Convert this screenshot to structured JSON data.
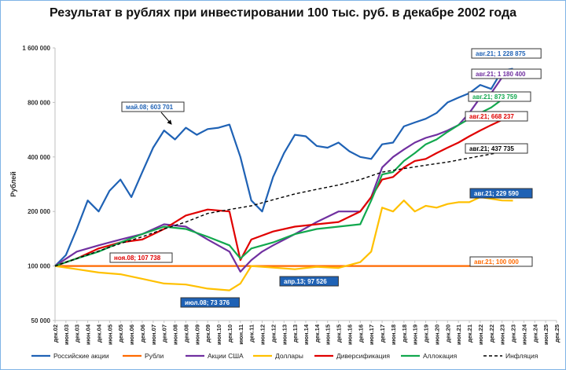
{
  "chart_data": {
    "type": "line",
    "title": "Результат в рублях при инвестировании 100 тыс. руб. в декабре 2002 года",
    "ylabel": "Рублей",
    "xlabel": "",
    "yscale": "log",
    "ylim": [
      50000,
      1600000
    ],
    "yticks": [
      50000,
      100000,
      200000,
      400000,
      800000,
      1600000
    ],
    "ytick_labels": [
      "50 000",
      "100 000",
      "200 000",
      "400 000",
      "800 000",
      "1 600 000"
    ],
    "x_tick_labels": [
      "дек.02",
      "июн.03",
      "дек.03",
      "июн.04",
      "дек.04",
      "июн.05",
      "дек.05",
      "июн.06",
      "дек.06",
      "июн.07",
      "дек.07",
      "июн.08",
      "дек.08",
      "июн.09",
      "дек.09",
      "июн.10",
      "дек.10",
      "июн.11",
      "дек.11",
      "июн.12",
      "дек.12",
      "июн.13",
      "дек.13",
      "июн.14",
      "дек.14",
      "июн.15",
      "дек.15",
      "июн.16",
      "дек.16",
      "июн.17",
      "дек.17",
      "июн.18",
      "дек.18",
      "июн.19",
      "дек.19",
      "июн.20",
      "дек.20",
      "июн.21",
      "дек.21",
      "июн.22",
      "дек.22",
      "июн.23",
      "дек.23",
      "июн.24",
      "дек.24",
      "июн.25",
      "дек.25"
    ],
    "grid": false,
    "legend_position": "bottom",
    "series": [
      {
        "name": "Российские акции",
        "color": "#1f62b5",
        "dash": "solid",
        "points": [
          [
            0,
            100000
          ],
          [
            1,
            115000
          ],
          [
            2,
            160000
          ],
          [
            3,
            230000
          ],
          [
            4,
            200000
          ],
          [
            5,
            260000
          ],
          [
            6,
            300000
          ],
          [
            7,
            240000
          ],
          [
            8,
            330000
          ],
          [
            9,
            450000
          ],
          [
            10,
            560000
          ],
          [
            11,
            500000
          ],
          [
            12,
            580000
          ],
          [
            13,
            530000
          ],
          [
            14,
            570000
          ],
          [
            15,
            580000
          ],
          [
            16,
            603701
          ],
          [
            17,
            400000
          ],
          [
            18,
            230000
          ],
          [
            19,
            200000
          ],
          [
            20,
            310000
          ],
          [
            21,
            420000
          ],
          [
            22,
            530000
          ],
          [
            23,
            520000
          ],
          [
            24,
            460000
          ],
          [
            25,
            450000
          ],
          [
            26,
            480000
          ],
          [
            27,
            430000
          ],
          [
            28,
            400000
          ],
          [
            29,
            390000
          ],
          [
            30,
            470000
          ],
          [
            31,
            480000
          ],
          [
            32,
            590000
          ],
          [
            33,
            620000
          ],
          [
            34,
            650000
          ],
          [
            35,
            700000
          ],
          [
            36,
            800000
          ],
          [
            37,
            850000
          ],
          [
            38,
            900000
          ],
          [
            39,
            1000000
          ],
          [
            40,
            950000
          ],
          [
            41,
            1200000
          ],
          [
            42,
            1228875
          ]
        ]
      },
      {
        "name": "Рубли",
        "color": "#ff6a00",
        "dash": "solid",
        "points": [
          [
            0,
            100000
          ],
          [
            42,
            100000
          ]
        ]
      },
      {
        "name": "Акции США",
        "color": "#7030a0",
        "dash": "solid",
        "points": [
          [
            0,
            100000
          ],
          [
            2,
            120000
          ],
          [
            4,
            130000
          ],
          [
            6,
            140000
          ],
          [
            8,
            150000
          ],
          [
            10,
            170000
          ],
          [
            12,
            165000
          ],
          [
            14,
            140000
          ],
          [
            16,
            120000
          ],
          [
            17,
            93000
          ],
          [
            18,
            107738
          ],
          [
            19,
            120000
          ],
          [
            20,
            130000
          ],
          [
            22,
            150000
          ],
          [
            24,
            175000
          ],
          [
            26,
            200000
          ],
          [
            28,
            200000
          ],
          [
            29,
            240000
          ],
          [
            30,
            350000
          ],
          [
            31,
            400000
          ],
          [
            32,
            440000
          ],
          [
            33,
            480000
          ],
          [
            34,
            510000
          ],
          [
            35,
            530000
          ],
          [
            36,
            560000
          ],
          [
            37,
            600000
          ],
          [
            38,
            700000
          ],
          [
            39,
            850000
          ],
          [
            40,
            900000
          ],
          [
            41,
            1100000
          ],
          [
            42,
            1180400
          ]
        ]
      },
      {
        "name": "Доллары",
        "color": "#ffc000",
        "dash": "solid",
        "points": [
          [
            0,
            100000
          ],
          [
            2,
            96000
          ],
          [
            4,
            92000
          ],
          [
            6,
            90000
          ],
          [
            8,
            85000
          ],
          [
            10,
            80000
          ],
          [
            12,
            79000
          ],
          [
            14,
            75000
          ],
          [
            16,
            73376
          ],
          [
            17,
            80000
          ],
          [
            18,
            100000
          ],
          [
            20,
            98000
          ],
          [
            22,
            96000
          ],
          [
            24,
            99000
          ],
          [
            26,
            97526
          ],
          [
            28,
            105000
          ],
          [
            29,
            120000
          ],
          [
            30,
            210000
          ],
          [
            31,
            200000
          ],
          [
            32,
            230000
          ],
          [
            33,
            200000
          ],
          [
            34,
            215000
          ],
          [
            35,
            210000
          ],
          [
            36,
            220000
          ],
          [
            37,
            225000
          ],
          [
            38,
            225000
          ],
          [
            39,
            240000
          ],
          [
            40,
            235000
          ],
          [
            41,
            230000
          ],
          [
            42,
            229590
          ]
        ]
      },
      {
        "name": "Диверсификация",
        "color": "#e00000",
        "dash": "solid",
        "points": [
          [
            0,
            100000
          ],
          [
            2,
            110000
          ],
          [
            4,
            125000
          ],
          [
            6,
            135000
          ],
          [
            8,
            140000
          ],
          [
            10,
            160000
          ],
          [
            12,
            190000
          ],
          [
            14,
            205000
          ],
          [
            16,
            200000
          ],
          [
            17,
            107738
          ],
          [
            18,
            140000
          ],
          [
            20,
            155000
          ],
          [
            22,
            165000
          ],
          [
            24,
            170000
          ],
          [
            26,
            175000
          ],
          [
            28,
            200000
          ],
          [
            29,
            240000
          ],
          [
            30,
            300000
          ],
          [
            31,
            310000
          ],
          [
            32,
            350000
          ],
          [
            33,
            380000
          ],
          [
            34,
            390000
          ],
          [
            35,
            420000
          ],
          [
            36,
            450000
          ],
          [
            37,
            480000
          ],
          [
            38,
            520000
          ],
          [
            39,
            560000
          ],
          [
            40,
            600000
          ],
          [
            41,
            640000
          ],
          [
            42,
            668237
          ]
        ]
      },
      {
        "name": "Аллокация",
        "color": "#12a84e",
        "dash": "solid",
        "points": [
          [
            0,
            100000
          ],
          [
            2,
            110000
          ],
          [
            4,
            120000
          ],
          [
            6,
            135000
          ],
          [
            8,
            150000
          ],
          [
            10,
            165000
          ],
          [
            12,
            160000
          ],
          [
            14,
            145000
          ],
          [
            16,
            130000
          ],
          [
            17,
            110000
          ],
          [
            18,
            125000
          ],
          [
            20,
            135000
          ],
          [
            22,
            150000
          ],
          [
            24,
            160000
          ],
          [
            26,
            165000
          ],
          [
            28,
            170000
          ],
          [
            29,
            230000
          ],
          [
            30,
            320000
          ],
          [
            31,
            330000
          ],
          [
            32,
            380000
          ],
          [
            33,
            420000
          ],
          [
            34,
            470000
          ],
          [
            35,
            500000
          ],
          [
            36,
            550000
          ],
          [
            37,
            600000
          ],
          [
            38,
            650000
          ],
          [
            39,
            700000
          ],
          [
            40,
            750000
          ],
          [
            41,
            830000
          ],
          [
            42,
            873759
          ]
        ]
      },
      {
        "name": "Инфляция",
        "color": "#000000",
        "dash": "dashed",
        "points": [
          [
            0,
            100000
          ],
          [
            2,
            110000
          ],
          [
            4,
            121000
          ],
          [
            6,
            133000
          ],
          [
            8,
            145000
          ],
          [
            10,
            160000
          ],
          [
            12,
            175000
          ],
          [
            14,
            195000
          ],
          [
            16,
            205000
          ],
          [
            18,
            215000
          ],
          [
            20,
            232000
          ],
          [
            22,
            250000
          ],
          [
            24,
            265000
          ],
          [
            26,
            280000
          ],
          [
            28,
            300000
          ],
          [
            30,
            330000
          ],
          [
            32,
            345000
          ],
          [
            34,
            360000
          ],
          [
            36,
            375000
          ],
          [
            38,
            395000
          ],
          [
            40,
            415000
          ],
          [
            42,
            437735
          ]
        ]
      }
    ],
    "annotations": [
      {
        "text": "май.08; 603 701",
        "series": "Российские акции"
      },
      {
        "text": "ноя.08; 107 738",
        "series": "Диверсификация"
      },
      {
        "text": "июл.08; 73 376",
        "series": "Доллары"
      },
      {
        "text": "апр.13; 97 526",
        "series": "Доллары"
      },
      {
        "text": "авг.21; 1 228 875",
        "series": "Российские акции"
      },
      {
        "text": "авг.21; 1 180 400",
        "series": "Акции США"
      },
      {
        "text": "авг.21; 873 759",
        "series": "Аллокация"
      },
      {
        "text": "авг.21; 668 237",
        "series": "Диверсификация"
      },
      {
        "text": "авг.21; 437 735",
        "series": "Инфляция"
      },
      {
        "text": "авг.21; 229 590",
        "series": "Доллары"
      },
      {
        "text": "авг.21; 100 000",
        "series": "Рубли"
      }
    ],
    "legend": [
      "Российские акции",
      "Рубли",
      "Акции США",
      "Доллары",
      "Диверсификация",
      "Аллокация",
      "Инфляция"
    ]
  }
}
